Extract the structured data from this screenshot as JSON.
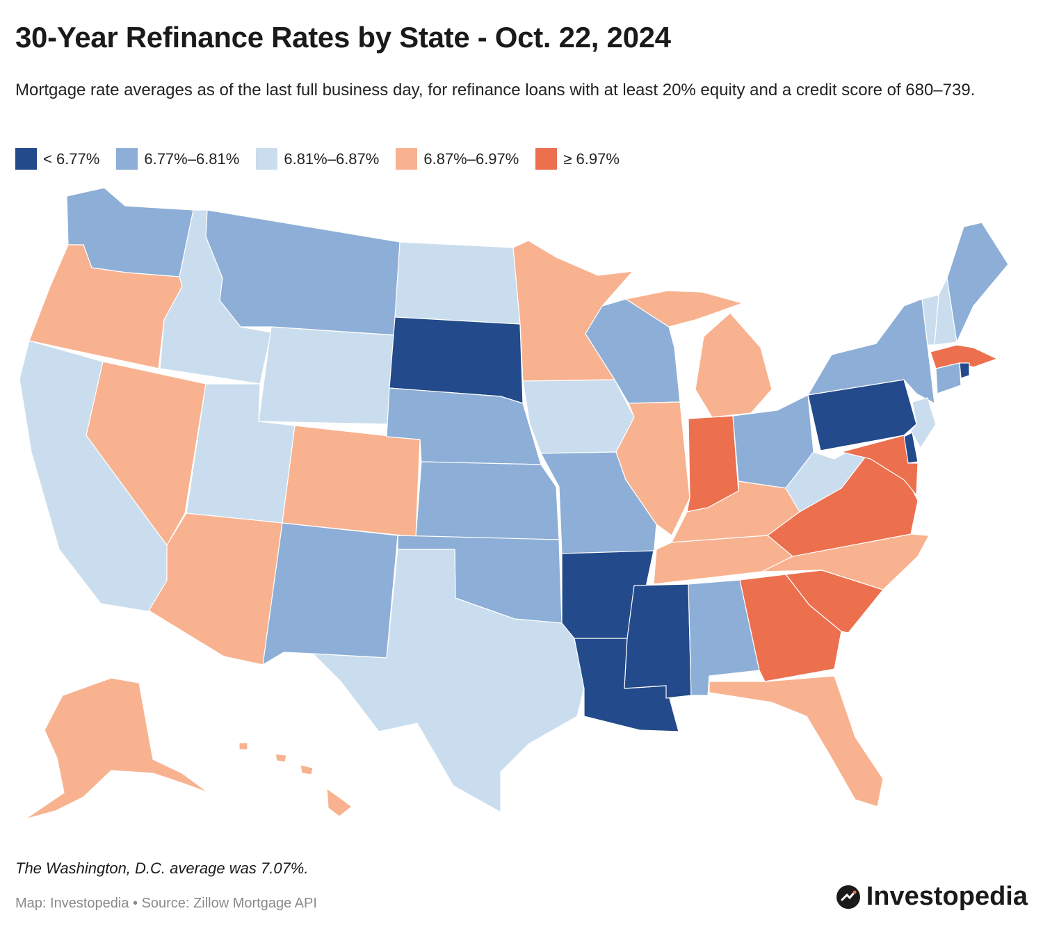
{
  "title": "30-Year Refinance Rates by State - Oct. 22, 2024",
  "subtitle": "Mortgage rate averages as of the last full business day, for refinance loans with at least 20% equity and a credit score of 680–739.",
  "legend": [
    {
      "label": "< 6.77%",
      "color": "#234a8a"
    },
    {
      "label": "6.77%–6.81%",
      "color": "#8daed6"
    },
    {
      "label": "6.81%–6.87%",
      "color": "#c9ddee"
    },
    {
      "label": "6.87%–6.97%",
      "color": "#f8b28f"
    },
    {
      "label": "≥ 6.97%",
      "color": "#ec6f4e"
    }
  ],
  "map": {
    "states": [
      {
        "code": "WA",
        "bucket": 1
      },
      {
        "code": "OR",
        "bucket": 3
      },
      {
        "code": "CA",
        "bucket": 2
      },
      {
        "code": "ID",
        "bucket": 2
      },
      {
        "code": "NV",
        "bucket": 3
      },
      {
        "code": "MT",
        "bucket": 1
      },
      {
        "code": "WY",
        "bucket": 2
      },
      {
        "code": "UT",
        "bucket": 2
      },
      {
        "code": "AZ",
        "bucket": 3
      },
      {
        "code": "CO",
        "bucket": 3
      },
      {
        "code": "NM",
        "bucket": 1
      },
      {
        "code": "ND",
        "bucket": 2
      },
      {
        "code": "SD",
        "bucket": 0
      },
      {
        "code": "NE",
        "bucket": 1
      },
      {
        "code": "KS",
        "bucket": 1
      },
      {
        "code": "OK",
        "bucket": 1
      },
      {
        "code": "TX",
        "bucket": 2
      },
      {
        "code": "MN",
        "bucket": 3
      },
      {
        "code": "IA",
        "bucket": 2
      },
      {
        "code": "MO",
        "bucket": 1
      },
      {
        "code": "AR",
        "bucket": 0
      },
      {
        "code": "LA",
        "bucket": 0
      },
      {
        "code": "WI",
        "bucket": 1
      },
      {
        "code": "IL",
        "bucket": 3
      },
      {
        "code": "MI",
        "bucket": 3
      },
      {
        "code": "IN",
        "bucket": 4
      },
      {
        "code": "OH",
        "bucket": 1
      },
      {
        "code": "KY",
        "bucket": 3
      },
      {
        "code": "TN",
        "bucket": 3
      },
      {
        "code": "MS",
        "bucket": 0
      },
      {
        "code": "AL",
        "bucket": 1
      },
      {
        "code": "GA",
        "bucket": 4
      },
      {
        "code": "FL",
        "bucket": 3
      },
      {
        "code": "SC",
        "bucket": 4
      },
      {
        "code": "NC",
        "bucket": 3
      },
      {
        "code": "VA",
        "bucket": 4
      },
      {
        "code": "WV",
        "bucket": 2
      },
      {
        "code": "PA",
        "bucket": 0
      },
      {
        "code": "NY",
        "bucket": 1
      },
      {
        "code": "VT",
        "bucket": 2
      },
      {
        "code": "NH",
        "bucket": 2
      },
      {
        "code": "ME",
        "bucket": 1
      },
      {
        "code": "MA",
        "bucket": 4
      },
      {
        "code": "RI",
        "bucket": 0
      },
      {
        "code": "CT",
        "bucket": 1
      },
      {
        "code": "NJ",
        "bucket": 2
      },
      {
        "code": "DE",
        "bucket": 0
      },
      {
        "code": "MD",
        "bucket": 4
      },
      {
        "code": "AK",
        "bucket": 3
      },
      {
        "code": "HI",
        "bucket": 3
      }
    ]
  },
  "note": "The Washington, D.C. average was 7.07%.",
  "source": "Map: Investopedia • Source: Zillow Mortgage API",
  "logo": "Investopedia"
}
